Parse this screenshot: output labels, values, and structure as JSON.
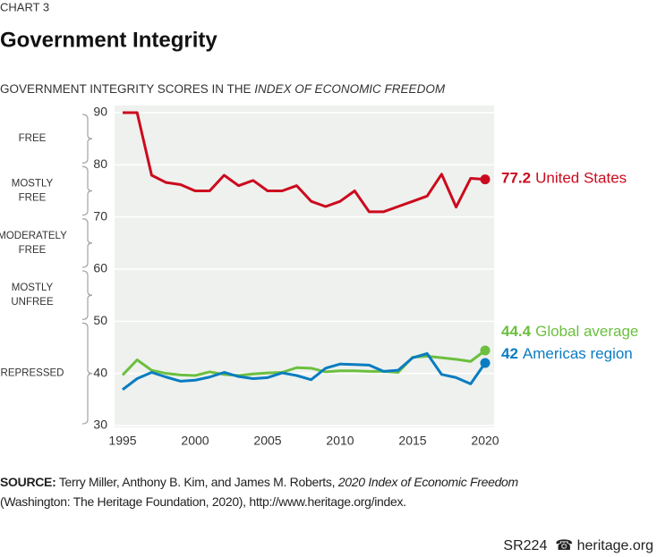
{
  "chart_data": {
    "type": "line",
    "kicker": "CHART 3",
    "title": "Government Integrity",
    "subtitle": [
      "GOVERNMENT INTEGRITY SCORES IN THE ",
      "INDEX OF ECONOMIC FREEDOM"
    ],
    "x": [
      1995,
      1996,
      1997,
      1998,
      1999,
      2000,
      2001,
      2002,
      2003,
      2004,
      2005,
      2006,
      2007,
      2008,
      2009,
      2010,
      2011,
      2012,
      2013,
      2014,
      2015,
      2016,
      2017,
      2018,
      2019,
      2020
    ],
    "series": [
      {
        "name": "United States",
        "color": "#cc0a1e",
        "values": [
          90,
          90,
          78,
          76.6,
          76.2,
          75,
          75,
          78,
          76,
          77,
          75,
          75,
          76,
          73,
          72,
          73,
          75,
          71,
          71,
          72,
          73,
          74,
          78.2,
          71.9,
          77.4,
          77.2
        ]
      },
      {
        "name": "Global average",
        "color": "#6cbf3f",
        "values": [
          39.7,
          42.6,
          40.6,
          40.0,
          39.7,
          39.6,
          40.3,
          39.8,
          39.6,
          39.9,
          40.1,
          40.2,
          41.1,
          41.0,
          40.3,
          40.5,
          40.5,
          40.4,
          40.4,
          40.2,
          43.1,
          43.3,
          43.0,
          42.7,
          42.3,
          44.4
        ]
      },
      {
        "name": "Americas region",
        "color": "#0a7cc1",
        "values": [
          36.9,
          39.0,
          40.2,
          39.3,
          38.5,
          38.7,
          39.3,
          40.2,
          39.4,
          39.0,
          39.2,
          40.1,
          39.6,
          38.8,
          41.0,
          41.8,
          41.7,
          41.6,
          40.4,
          40.6,
          43.0,
          43.8,
          39.8,
          39.2,
          38.0,
          42.0
        ]
      }
    ],
    "xlim": [
      1995,
      2020
    ],
    "xticks": [
      1995,
      2000,
      2005,
      2010,
      2015,
      2020
    ],
    "ylim": [
      30,
      90
    ],
    "yticks": [
      30,
      40,
      50,
      60,
      70,
      80,
      90
    ],
    "grid": true,
    "bands": [
      {
        "lines": [
          "FREE"
        ],
        "range": [
          80,
          90
        ]
      },
      {
        "lines": [
          "MOSTLY",
          "FREE"
        ],
        "range": [
          70,
          80
        ]
      },
      {
        "lines": [
          "MODERATELY",
          "FREE"
        ],
        "range": [
          60,
          70
        ]
      },
      {
        "lines": [
          "MOSTLY",
          "UNFREE"
        ],
        "range": [
          50,
          60
        ]
      },
      {
        "lines": [
          "REPRESSED"
        ],
        "range": [
          30,
          50
        ]
      }
    ],
    "source": [
      "SOURCE:",
      "Terry Miller, Anthony B. Kim, and James M. Roberts, ",
      "2020 Index of Economic Freedom",
      "(Washington: The Heritage Foundation, 2020), http://www.heritage.org/index."
    ],
    "footer": [
      "SR224",
      "heritage.org"
    ]
  }
}
